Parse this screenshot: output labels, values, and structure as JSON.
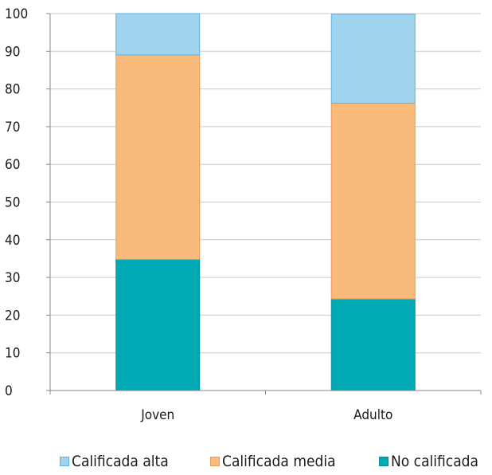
{
  "chart_data": {
    "type": "bar",
    "stacked": true,
    "categories": [
      "Joven",
      "Adulto"
    ],
    "series": [
      {
        "name": "No calificada",
        "values": [
          34.8,
          24.3
        ],
        "color": "#00a9b4",
        "stroke": "#0b8f99"
      },
      {
        "name": "Calificada media",
        "values": [
          54.2,
          51.9
        ],
        "color": "#f8bb7b",
        "stroke": "#ee9a52"
      },
      {
        "name": "Calificada alta",
        "values": [
          11.0,
          23.6
        ],
        "color": "#9fd3ee",
        "stroke": "#5cb4e0"
      }
    ],
    "ylim": [
      0,
      100
    ],
    "yticks": [
      0,
      10,
      20,
      30,
      40,
      50,
      60,
      70,
      80,
      90,
      100
    ],
    "grid": true,
    "legend_position": "bottom",
    "legend_order": [
      "Calificada alta",
      "Calificada media",
      "No calificada"
    ]
  }
}
